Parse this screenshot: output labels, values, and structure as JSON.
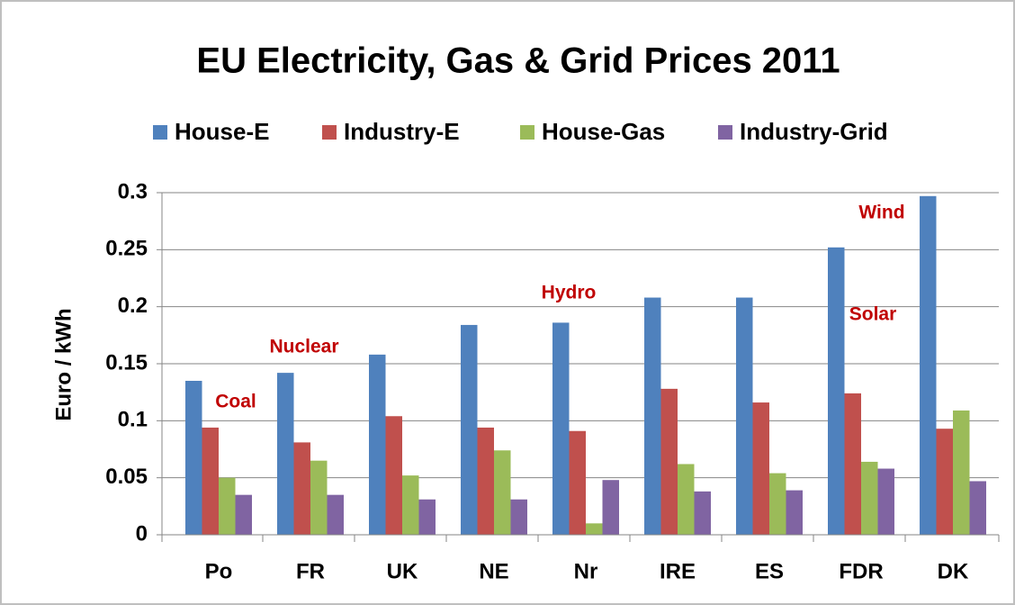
{
  "chart_data": {
    "type": "bar",
    "title": "EU  Electricity, Gas & Grid Prices 2011",
    "y_label": "Euro / kWh",
    "categories": [
      "Po",
      "FR",
      "UK",
      "NE",
      "Nr",
      "IRE",
      "ES",
      "FDR",
      "DK"
    ],
    "series": [
      {
        "name": "House-E",
        "color": "#4f81bd",
        "values": [
          0.135,
          0.142,
          0.158,
          0.184,
          0.186,
          0.208,
          0.208,
          0.252,
          0.297
        ]
      },
      {
        "name": "Industry-E",
        "color": "#c0504d",
        "values": [
          0.094,
          0.081,
          0.104,
          0.094,
          0.091,
          0.128,
          0.116,
          0.124,
          0.093
        ]
      },
      {
        "name": "House-Gas",
        "color": "#9bbb59",
        "values": [
          0.05,
          0.065,
          0.052,
          0.074,
          0.01,
          0.062,
          0.054,
          0.064,
          0.109
        ]
      },
      {
        "name": "Industry-Grid",
        "color": "#8064a2",
        "values": [
          0.035,
          0.035,
          0.031,
          0.031,
          0.048,
          0.038,
          0.039,
          0.058,
          0.047
        ]
      }
    ],
    "annotations": [
      "Coal",
      "Nuclear",
      "Hydro",
      "Solar",
      "Wind"
    ],
    "ylim": [
      0,
      0.3
    ],
    "yticks": [
      0,
      0.05,
      0.1,
      0.15,
      0.2,
      0.25,
      0.3
    ],
    "grid": true,
    "legend": "top"
  }
}
